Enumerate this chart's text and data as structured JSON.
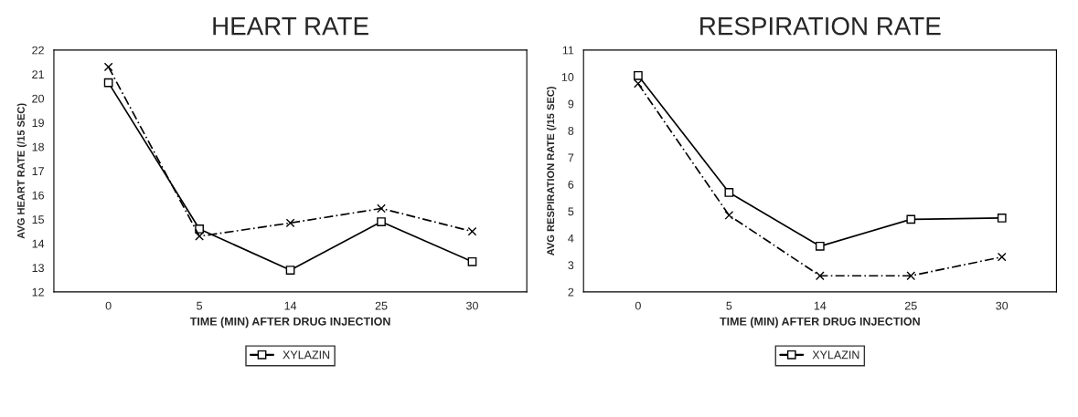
{
  "chart_data": [
    {
      "type": "line",
      "title": "HEART RATE",
      "xlabel": "TIME (MIN) AFTER DRUG INJECTION",
      "ylabel": "AVG HEART RATE (/15 SEC)",
      "categories": [
        "0",
        "5",
        "14",
        "25",
        "30"
      ],
      "ylim": [
        12,
        22
      ],
      "yticks": [
        12,
        13,
        14,
        15,
        16,
        17,
        18,
        19,
        20,
        21,
        22
      ],
      "legend": "bottom",
      "grid": false,
      "series": [
        {
          "name": "XYLAZIN",
          "color": "#000000",
          "marker": "square",
          "line_style": "solid",
          "values": [
            20.65,
            14.6,
            12.9,
            14.9,
            13.25
          ]
        },
        {
          "color": "#000000",
          "marker": "cross",
          "line_style": "dashed",
          "values": [
            21.3,
            14.3,
            14.85,
            15.45,
            14.5
          ]
        }
      ]
    },
    {
      "type": "line",
      "title": "RESPIRATION RATE",
      "xlabel": "TIME (MIN) AFTER DRUG INJECTION",
      "ylabel": "AVG RESPIRATION RATE (/15 SEC)",
      "categories": [
        "0",
        "5",
        "14",
        "25",
        "30"
      ],
      "ylim": [
        2,
        11
      ],
      "yticks": [
        2,
        3,
        4,
        5,
        6,
        7,
        8,
        9,
        10,
        11
      ],
      "legend": "bottom",
      "grid": false,
      "series": [
        {
          "name": "XYLAZIN",
          "color": "#000000",
          "marker": "square",
          "line_style": "solid",
          "values": [
            10.05,
            5.7,
            3.7,
            4.7,
            4.75
          ]
        },
        {
          "color": "#000000",
          "marker": "cross",
          "line_style": "dashed",
          "values": [
            9.75,
            4.85,
            2.6,
            2.6,
            3.3
          ]
        }
      ]
    }
  ]
}
